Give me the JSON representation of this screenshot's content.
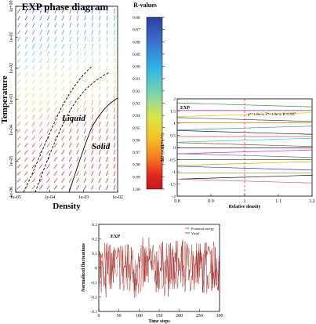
{
  "chart_data": [
    {
      "type": "vector field",
      "title": "EXP phase diagram",
      "xlabel": "Density",
      "ylabel": "Temperature",
      "x_scale": "log",
      "y_scale": "log",
      "xlim": [
        1e-05,
        0.01
      ],
      "ylim": [
        1e-06,
        1
      ],
      "x_ticks": [
        "1e-05",
        "1e-04",
        "1e-03",
        "1e-02"
      ],
      "y_ticks": [
        "1e-06",
        "1e-05",
        "1e-04",
        "1e-03",
        "1e-02",
        "1e-01",
        "1e+00"
      ],
      "annotations": [
        "Liquid",
        "Solid"
      ],
      "colorbar_title": "R-values",
      "colorbar_ticks": [
        "0.86",
        "0.87",
        "0.88",
        "0.89",
        "0.90",
        "0.91",
        "0.92",
        "0.93",
        "0.94",
        "0.95",
        "0.96",
        "0.97",
        "0.98",
        "0.99",
        "1.00"
      ],
      "colorbar_range": [
        0.86,
        1.0
      ],
      "colormap": [
        "#2b3f9e",
        "#3a6fd0",
        "#2fb7e6",
        "#7fd6a8",
        "#d9e64a",
        "#f7c226",
        "#f47a22",
        "#e3261f",
        "#c51b1b"
      ]
    },
    {
      "type": "line",
      "label": "EXP",
      "annotation": "ρ*=1.0e-3, T*=1.0e-4, R=0.987",
      "xlabel": "Relative density",
      "ylabel": "ΔU / <ΔU²>^½",
      "xlim": [
        0.8,
        1.2
      ],
      "ylim": [
        -2,
        2
      ],
      "x_ticks": [
        "0.8",
        "0.9",
        "1",
        "1.1",
        "1.2"
      ],
      "y_ticks": [
        "-2",
        "-1.5",
        "-1",
        "-0.5",
        "0",
        "0.5",
        "1",
        "1.5",
        "2"
      ],
      "reference_line_x": 1.0,
      "series_intercepts": [
        1.75,
        1.52,
        1.35,
        1.15,
        1.02,
        0.8,
        0.62,
        0.45,
        0.3,
        0.12,
        -0.02,
        -0.18,
        -0.33,
        -0.5,
        -0.66,
        -0.85,
        -1.05,
        -1.22,
        -1.38
      ],
      "series_colors": [
        "#3a8a3a",
        "#7a2a8a",
        "#c8c800",
        "#444444",
        "#e27020",
        "#2a8ac8",
        "#1a1a1a",
        "#c82a2a",
        "#2ac8c8",
        "#8a4a00",
        "#1a1a6a",
        "#b82ab8",
        "#6a6a6a",
        "#2a6a2a",
        "#c8a000",
        "#3030c8",
        "#8a8a2a",
        "#0a0a0a",
        "#c86060"
      ]
    },
    {
      "type": "line",
      "label": "EXP",
      "xlabel": "Time steps",
      "ylabel": "Normalized fluctuations",
      "xlim": [
        0,
        300
      ],
      "ylim": [
        -0.3,
        0.3
      ],
      "x_ticks": [
        "0",
        "50",
        "100",
        "150",
        "200",
        "250",
        "300"
      ],
      "y_ticks": [
        "-0.3",
        "-0.2",
        "-0.1",
        "0",
        "0.1",
        "0.2",
        "0.3"
      ],
      "legend_position": "top-right",
      "series": [
        {
          "name": "Potential energy",
          "color": "#c0392b"
        },
        {
          "name": "Virial",
          "color": "#8b1a1a"
        }
      ]
    }
  ]
}
